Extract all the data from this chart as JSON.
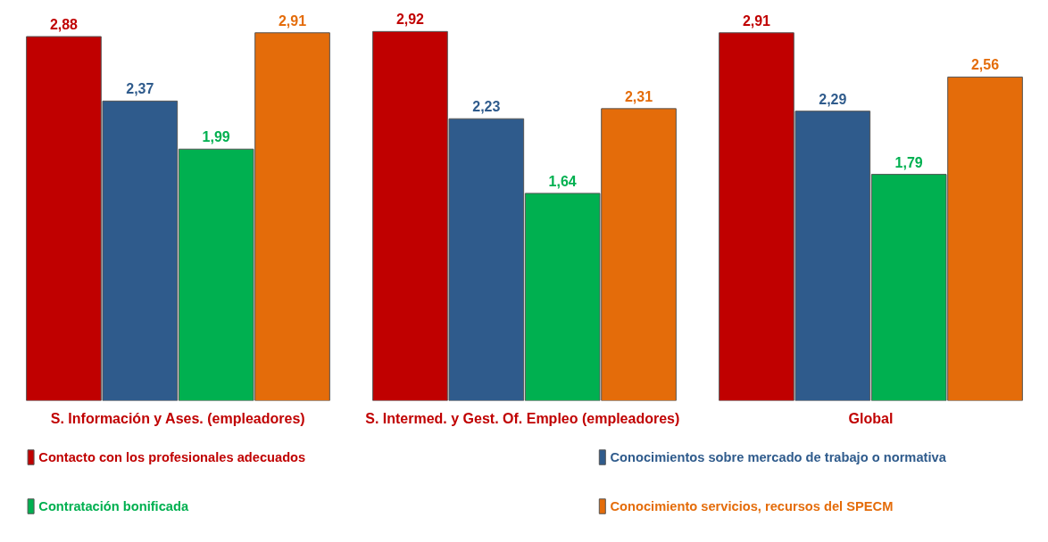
{
  "chart_data": {
    "type": "bar",
    "categories": [
      "S. Información y Ases. (empleadores)",
      "S. Intermed. y  Gest. Of. Empleo (empleadores)",
      "Global"
    ],
    "series": [
      {
        "name": "Contacto con los profesionales adecuados",
        "color": "#c00000",
        "values": [
          2.88,
          2.92,
          2.91
        ],
        "value_labels": [
          "2,88",
          "2,92",
          "2,91"
        ]
      },
      {
        "name": "Conocimientos sobre mercado de trabajo o normativa",
        "color": "#2f5b8c",
        "values": [
          2.37,
          2.23,
          2.29
        ],
        "value_labels": [
          "2,37",
          "2,23",
          "2,29"
        ]
      },
      {
        "name": "Contratación bonificada",
        "color": "#00b050",
        "values": [
          1.99,
          1.64,
          1.79
        ],
        "value_labels": [
          "1,99",
          "1,64",
          "1,79"
        ]
      },
      {
        "name": "Conocimiento servicios, recursos del SPECM",
        "color": "#e46c0a",
        "values": [
          2.91,
          2.31,
          2.56
        ],
        "value_labels": [
          "2,91",
          "2,31",
          "2,56"
        ]
      }
    ],
    "tick_labels": "x",
    "legend": "bottom"
  }
}
